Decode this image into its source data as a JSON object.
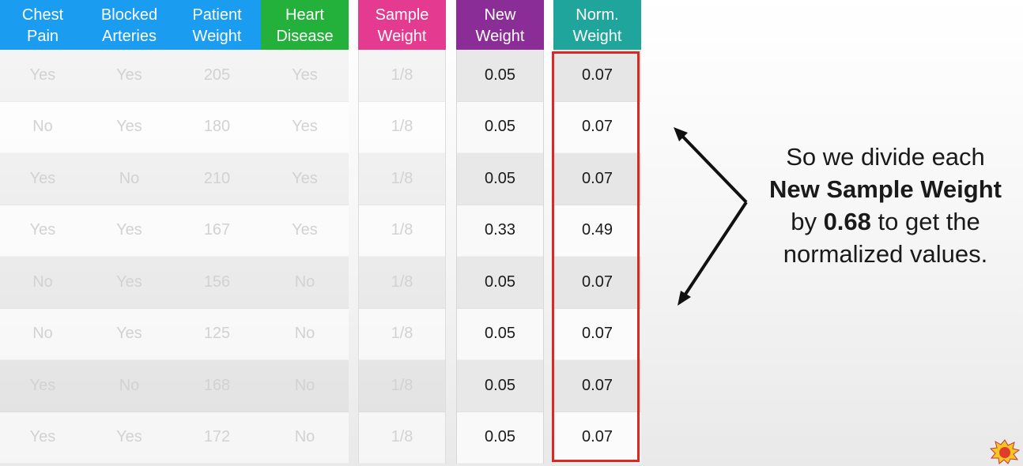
{
  "colors": {
    "chest_pain": "#1a9cf0",
    "blocked_arteries": "#1a9cf0",
    "patient_weight": "#1a9cf0",
    "heart_disease": "#23b13c",
    "sample_weight": "#e43a8f",
    "new_weight": "#8a2d96",
    "norm_weight": "#1fa59c",
    "highlight": "#d62b24"
  },
  "headers": {
    "chest_pain": [
      "Chest",
      "Pain"
    ],
    "blocked_arteries": [
      "Blocked",
      "Arteries"
    ],
    "patient_weight": [
      "Patient",
      "Weight"
    ],
    "heart_disease": [
      "Heart",
      "Disease"
    ],
    "sample_weight": [
      "Sample",
      "Weight"
    ],
    "new_weight": [
      "New",
      "Weight"
    ],
    "norm_weight": [
      "Norm.",
      "Weight"
    ]
  },
  "rows": [
    {
      "chest_pain": "Yes",
      "blocked_arteries": "Yes",
      "patient_weight": "205",
      "heart_disease": "Yes",
      "sample_weight": "1/8",
      "new_weight": "0.05",
      "norm_weight": "0.07"
    },
    {
      "chest_pain": "No",
      "blocked_arteries": "Yes",
      "patient_weight": "180",
      "heart_disease": "Yes",
      "sample_weight": "1/8",
      "new_weight": "0.05",
      "norm_weight": "0.07"
    },
    {
      "chest_pain": "Yes",
      "blocked_arteries": "No",
      "patient_weight": "210",
      "heart_disease": "Yes",
      "sample_weight": "1/8",
      "new_weight": "0.05",
      "norm_weight": "0.07"
    },
    {
      "chest_pain": "Yes",
      "blocked_arteries": "Yes",
      "patient_weight": "167",
      "heart_disease": "Yes",
      "sample_weight": "1/8",
      "new_weight": "0.33",
      "norm_weight": "0.49"
    },
    {
      "chest_pain": "No",
      "blocked_arteries": "Yes",
      "patient_weight": "156",
      "heart_disease": "No",
      "sample_weight": "1/8",
      "new_weight": "0.05",
      "norm_weight": "0.07"
    },
    {
      "chest_pain": "No",
      "blocked_arteries": "Yes",
      "patient_weight": "125",
      "heart_disease": "No",
      "sample_weight": "1/8",
      "new_weight": "0.05",
      "norm_weight": "0.07"
    },
    {
      "chest_pain": "Yes",
      "blocked_arteries": "No",
      "patient_weight": "168",
      "heart_disease": "No",
      "sample_weight": "1/8",
      "new_weight": "0.05",
      "norm_weight": "0.07"
    },
    {
      "chest_pain": "Yes",
      "blocked_arteries": "Yes",
      "patient_weight": "172",
      "heart_disease": "No",
      "sample_weight": "1/8",
      "new_weight": "0.05",
      "norm_weight": "0.07"
    }
  ],
  "caption": {
    "line1": "So we divide each",
    "line2_bold": "New Sample Weight",
    "line3_prefix": "by ",
    "line3_bold": "0.68",
    "line3_suffix": " to get the",
    "line4": "normalized values."
  },
  "logo_icon": "statquest-logo-icon"
}
